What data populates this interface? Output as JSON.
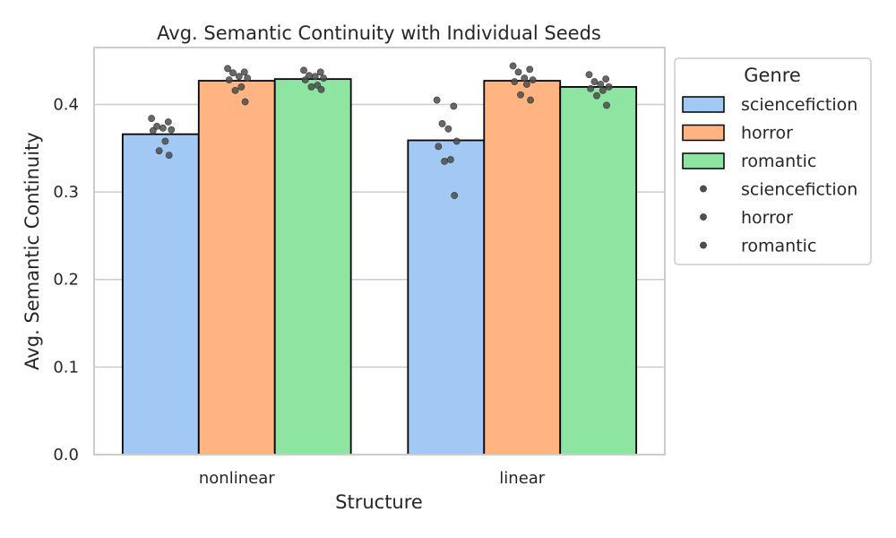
{
  "chart_data": {
    "type": "bar",
    "title": "Avg. Semantic Continuity with Individual Seeds",
    "xlabel": "Structure",
    "ylabel": "Avg. Semantic Continuity",
    "categories": [
      "nonlinear",
      "linear"
    ],
    "ylim": [
      0,
      0.465
    ],
    "yticks": [
      0.0,
      0.1,
      0.2,
      0.3,
      0.4
    ],
    "ytick_labels": [
      "0.0",
      "0.1",
      "0.2",
      "0.3",
      "0.4"
    ],
    "grid": "horizontal",
    "legend": {
      "title": "Genre",
      "placement": "outside-right-top",
      "bar_entries": [
        "sciencefiction",
        "horror",
        "romantic"
      ],
      "point_entries": [
        "sciencefiction",
        "horror",
        "romantic"
      ]
    },
    "series": [
      {
        "name": "sciencefiction",
        "color": "#a1c9f4",
        "values": [
          0.366,
          0.359
        ],
        "points": [
          [
            0.384,
            0.38,
            0.375,
            0.373,
            0.371,
            0.37,
            0.358,
            0.347,
            0.342
          ],
          [
            0.405,
            0.398,
            0.378,
            0.372,
            0.358,
            0.352,
            0.337,
            0.335,
            0.296
          ]
        ]
      },
      {
        "name": "horror",
        "color": "#ffb482",
        "values": [
          0.427,
          0.427
        ],
        "points": [
          [
            0.441,
            0.437,
            0.436,
            0.432,
            0.43,
            0.428,
            0.42,
            0.416,
            0.403
          ],
          [
            0.444,
            0.44,
            0.437,
            0.43,
            0.428,
            0.426,
            0.423,
            0.411,
            0.405
          ]
        ]
      },
      {
        "name": "romantic",
        "color": "#8de5a1",
        "values": [
          0.429,
          0.42
        ],
        "points": [
          [
            0.439,
            0.437,
            0.433,
            0.432,
            0.43,
            0.428,
            0.422,
            0.42,
            0.417
          ],
          [
            0.434,
            0.429,
            0.426,
            0.423,
            0.42,
            0.418,
            0.416,
            0.41,
            0.399
          ]
        ]
      }
    ],
    "point_color": "#4d4d4d",
    "bar_edge_color": "#000000",
    "grid_color": "#cccccc",
    "spine_color": "#cccccc"
  }
}
